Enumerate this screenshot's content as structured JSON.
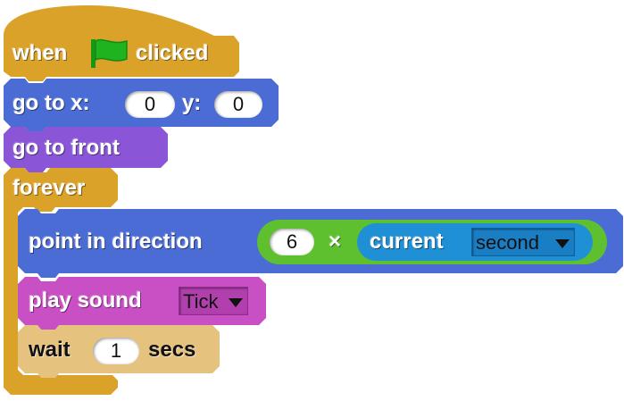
{
  "colors": {
    "control": "#dba22a",
    "control_light": "#e6c27f",
    "motion": "#4a6cd4",
    "looks": "#8a55d7",
    "sound": "#c94fc5",
    "operators": "#5ec02f",
    "sensing": "#1f8fd6",
    "flag": "#1fb31f"
  },
  "blocks": {
    "hat": {
      "before": "when",
      "after": "clicked",
      "icon": "green-flag-icon"
    },
    "goto_xy": {
      "label": "go to x:",
      "x_value": "0",
      "y_label": "y:",
      "y_value": "0"
    },
    "go_to_front": {
      "label": "go to front"
    },
    "forever": {
      "label": "forever"
    },
    "point_direction": {
      "label": "point in direction",
      "multiplier": "6",
      "operator": "×",
      "reporter_label": "current",
      "reporter_option": "second"
    },
    "play_sound": {
      "label": "play sound",
      "sound": "Tick"
    },
    "wait": {
      "label": "wait",
      "value": "1",
      "unit": "secs"
    }
  }
}
